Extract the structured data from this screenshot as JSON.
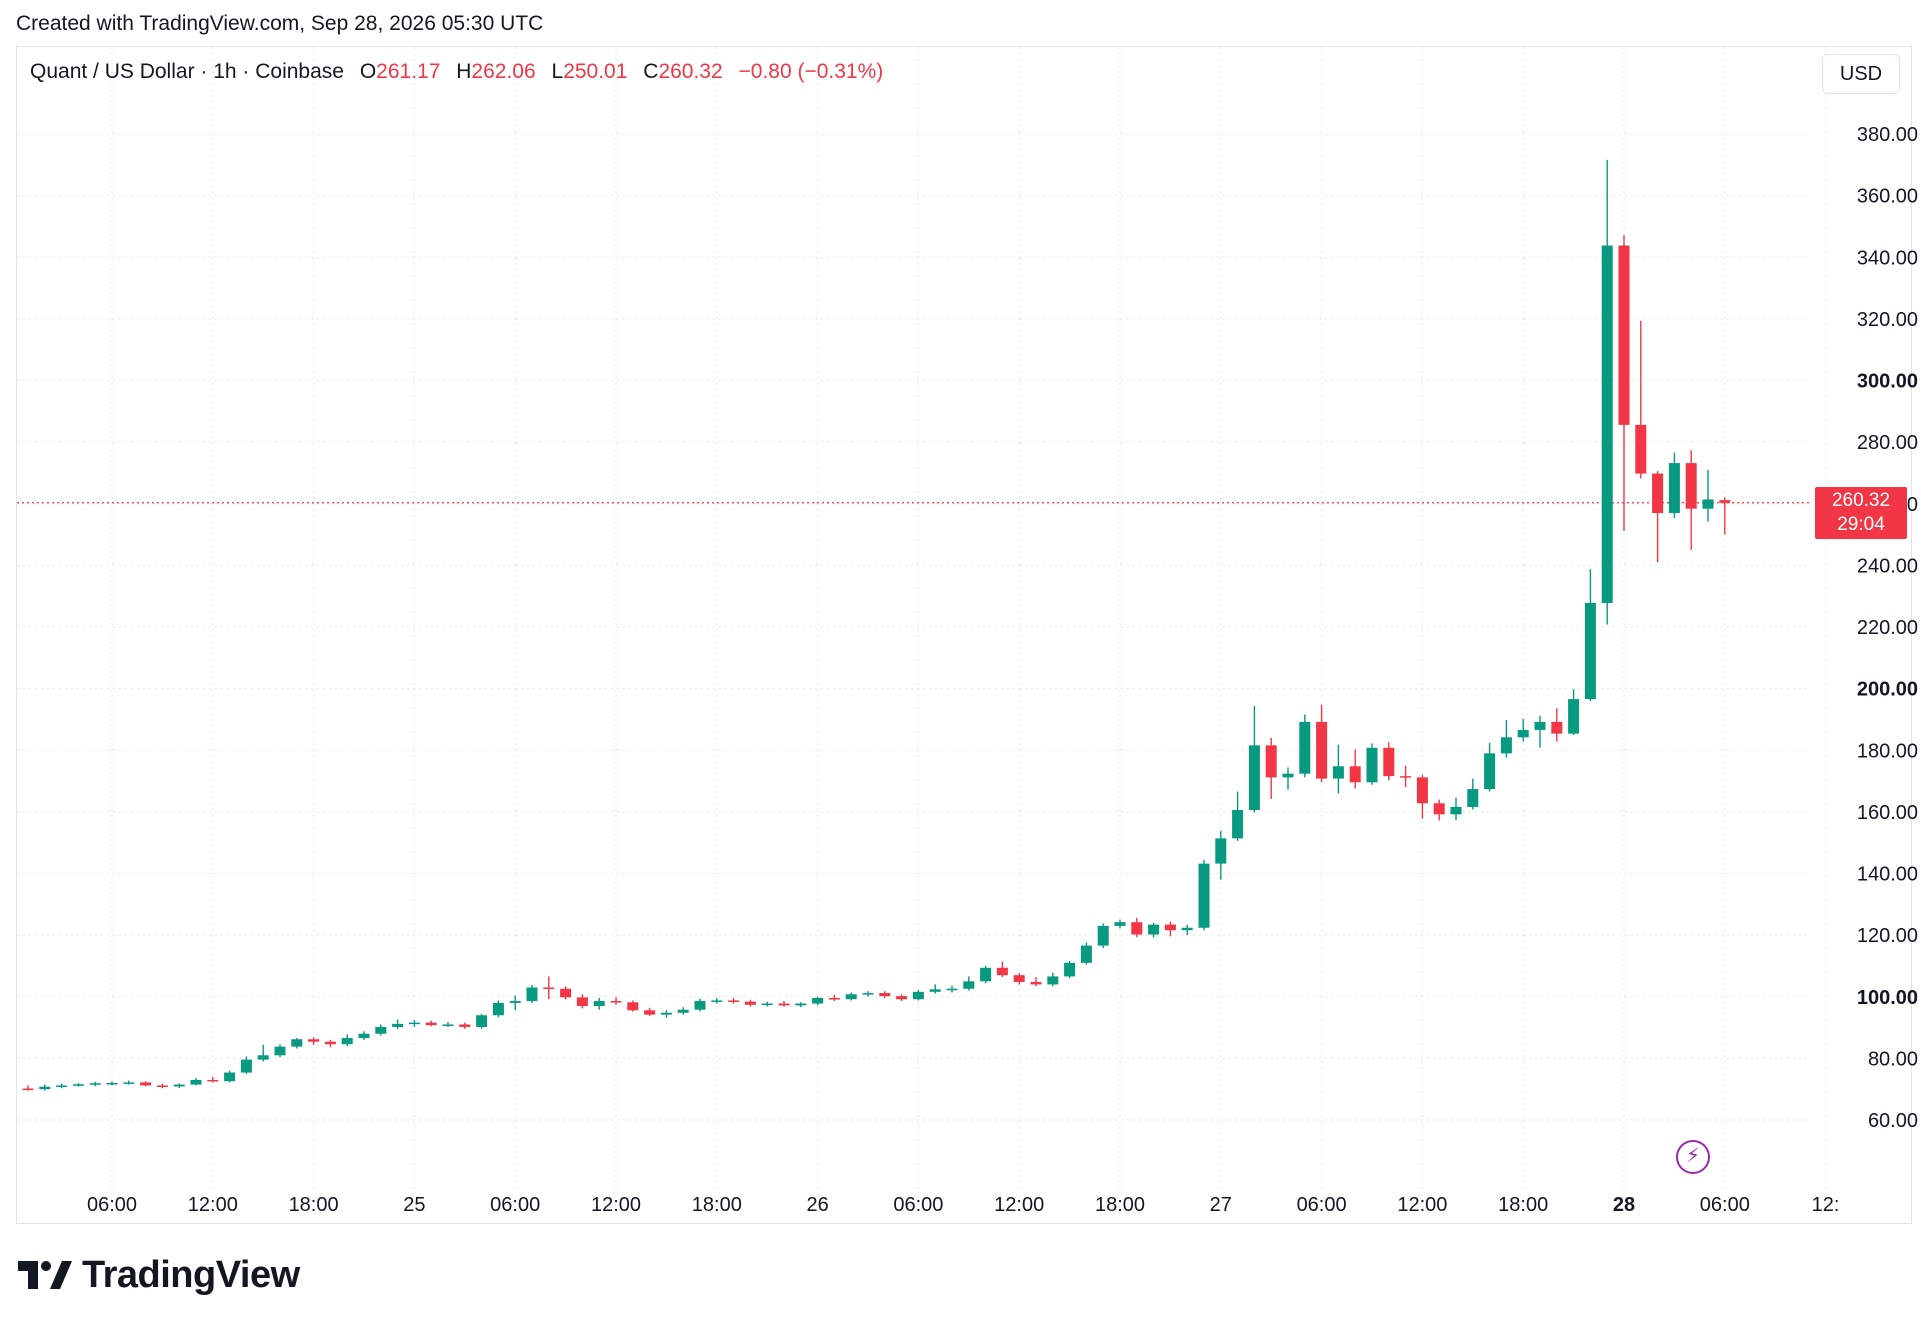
{
  "header": {
    "caption": "Created with TradingView.com, Sep 28, 2026 05:30 UTC"
  },
  "legend": {
    "symbol": "Quant / US Dollar · 1h · Coinbase",
    "open_label": "O",
    "open": "261.17",
    "high_label": "H",
    "high": "262.06",
    "low_label": "L",
    "low": "250.01",
    "close_label": "C",
    "close": "260.32",
    "change": "−0.80 (−0.31%)"
  },
  "currency_button": "USD",
  "price_tag": {
    "price": "260.32",
    "countdown": "29:04"
  },
  "footer": {
    "brand": "TradingView"
  },
  "colors": {
    "up": "#089981",
    "down": "#f23645",
    "grid": "#e0e3eb",
    "text": "#131722"
  },
  "icons": {
    "replay": "lightning-icon",
    "logo": "tradingview-logo-icon"
  },
  "chart_data": {
    "type": "candlestick",
    "interval": "1h",
    "yaxis": {
      "range": [
        40,
        390
      ],
      "ticks": [
        "60.00",
        "80.00",
        "100.00",
        "120.00",
        "140.00",
        "160.00",
        "180.00",
        "200.00",
        "220.00",
        "240.00",
        "260.00",
        "280.00",
        "300.00",
        "320.00",
        "340.00",
        "360.00",
        "380.00"
      ],
      "bold_ticks": [
        "100.00",
        "200.00",
        "300.00"
      ]
    },
    "xaxis": {
      "ticks": [
        "06:00",
        "12:00",
        "18:00",
        "25",
        "06:00",
        "12:00",
        "18:00",
        "26",
        "06:00",
        "12:00",
        "18:00",
        "27",
        "06:00",
        "12:00",
        "18:00",
        "28",
        "06:00",
        "12:"
      ],
      "bold_ticks": [
        "28"
      ]
    },
    "last_price": 260.32,
    "candles": [
      {
        "o": 70.2,
        "h": 71.2,
        "l": 69.5,
        "c": 70.0
      },
      {
        "o": 70.0,
        "h": 71.5,
        "l": 69.6,
        "c": 70.8
      },
      {
        "o": 70.8,
        "h": 71.8,
        "l": 70.3,
        "c": 71.2
      },
      {
        "o": 71.2,
        "h": 72.0,
        "l": 70.8,
        "c": 71.6
      },
      {
        "o": 71.6,
        "h": 72.4,
        "l": 71.0,
        "c": 71.9
      },
      {
        "o": 71.9,
        "h": 72.5,
        "l": 71.3,
        "c": 72.0
      },
      {
        "o": 72.0,
        "h": 72.8,
        "l": 71.5,
        "c": 72.2
      },
      {
        "o": 72.2,
        "h": 72.6,
        "l": 71.0,
        "c": 71.2
      },
      {
        "o": 71.2,
        "h": 71.8,
        "l": 70.3,
        "c": 70.9
      },
      {
        "o": 70.9,
        "h": 71.9,
        "l": 70.4,
        "c": 71.5
      },
      {
        "o": 71.5,
        "h": 73.6,
        "l": 71.2,
        "c": 73.0
      },
      {
        "o": 73.0,
        "h": 74.0,
        "l": 72.2,
        "c": 72.6
      },
      {
        "o": 72.6,
        "h": 76.0,
        "l": 72.2,
        "c": 75.4
      },
      {
        "o": 75.4,
        "h": 80.6,
        "l": 75.0,
        "c": 79.6
      },
      {
        "o": 79.6,
        "h": 84.4,
        "l": 79.0,
        "c": 81.0
      },
      {
        "o": 81.0,
        "h": 84.6,
        "l": 80.4,
        "c": 83.8
      },
      {
        "o": 83.8,
        "h": 86.6,
        "l": 83.2,
        "c": 86.2
      },
      {
        "o": 86.2,
        "h": 86.8,
        "l": 84.4,
        "c": 85.4
      },
      {
        "o": 85.4,
        "h": 86.0,
        "l": 83.6,
        "c": 84.6
      },
      {
        "o": 84.6,
        "h": 87.8,
        "l": 84.0,
        "c": 86.6
      },
      {
        "o": 86.6,
        "h": 88.8,
        "l": 86.0,
        "c": 88.0
      },
      {
        "o": 88.0,
        "h": 91.0,
        "l": 87.4,
        "c": 90.2
      },
      {
        "o": 90.2,
        "h": 92.6,
        "l": 89.6,
        "c": 91.2
      },
      {
        "o": 91.2,
        "h": 92.4,
        "l": 90.2,
        "c": 91.6
      },
      {
        "o": 91.6,
        "h": 92.2,
        "l": 90.4,
        "c": 90.8
      },
      {
        "o": 90.8,
        "h": 91.8,
        "l": 90.2,
        "c": 91.0
      },
      {
        "o": 91.0,
        "h": 91.6,
        "l": 89.6,
        "c": 90.2
      },
      {
        "o": 90.2,
        "h": 94.4,
        "l": 89.6,
        "c": 94.0
      },
      {
        "o": 94.0,
        "h": 98.8,
        "l": 93.4,
        "c": 98.0
      },
      {
        "o": 98.0,
        "h": 100.4,
        "l": 95.6,
        "c": 98.6
      },
      {
        "o": 98.6,
        "h": 103.8,
        "l": 98.0,
        "c": 103.0
      },
      {
        "o": 103.0,
        "h": 106.6,
        "l": 99.2,
        "c": 102.6
      },
      {
        "o": 102.6,
        "h": 103.4,
        "l": 99.2,
        "c": 99.8
      },
      {
        "o": 99.8,
        "h": 100.8,
        "l": 96.2,
        "c": 97.0
      },
      {
        "o": 97.0,
        "h": 99.6,
        "l": 95.8,
        "c": 98.6
      },
      {
        "o": 98.6,
        "h": 99.8,
        "l": 97.4,
        "c": 98.2
      },
      {
        "o": 98.2,
        "h": 98.8,
        "l": 95.2,
        "c": 95.6
      },
      {
        "o": 95.6,
        "h": 96.4,
        "l": 93.8,
        "c": 94.2
      },
      {
        "o": 94.2,
        "h": 95.6,
        "l": 93.2,
        "c": 94.8
      },
      {
        "o": 94.8,
        "h": 96.6,
        "l": 94.2,
        "c": 95.8
      },
      {
        "o": 95.8,
        "h": 99.4,
        "l": 95.2,
        "c": 98.6
      },
      {
        "o": 98.6,
        "h": 99.6,
        "l": 97.8,
        "c": 98.8
      },
      {
        "o": 98.8,
        "h": 99.6,
        "l": 97.8,
        "c": 98.4
      },
      {
        "o": 98.4,
        "h": 99.0,
        "l": 96.8,
        "c": 97.4
      },
      {
        "o": 97.4,
        "h": 98.4,
        "l": 96.8,
        "c": 97.8
      },
      {
        "o": 97.8,
        "h": 98.6,
        "l": 96.8,
        "c": 97.2
      },
      {
        "o": 97.2,
        "h": 98.2,
        "l": 96.6,
        "c": 97.8
      },
      {
        "o": 97.8,
        "h": 100.0,
        "l": 97.2,
        "c": 99.6
      },
      {
        "o": 99.6,
        "h": 100.6,
        "l": 98.6,
        "c": 99.2
      },
      {
        "o": 99.2,
        "h": 101.4,
        "l": 98.8,
        "c": 100.8
      },
      {
        "o": 100.8,
        "h": 101.8,
        "l": 100.0,
        "c": 101.2
      },
      {
        "o": 101.2,
        "h": 101.8,
        "l": 99.6,
        "c": 100.2
      },
      {
        "o": 100.2,
        "h": 100.8,
        "l": 98.6,
        "c": 99.2
      },
      {
        "o": 99.2,
        "h": 102.2,
        "l": 98.8,
        "c": 101.6
      },
      {
        "o": 101.6,
        "h": 104.0,
        "l": 101.0,
        "c": 102.4
      },
      {
        "o": 102.4,
        "h": 103.6,
        "l": 101.4,
        "c": 102.6
      },
      {
        "o": 102.6,
        "h": 106.6,
        "l": 102.0,
        "c": 105.0
      },
      {
        "o": 105.0,
        "h": 110.0,
        "l": 104.4,
        "c": 109.4
      },
      {
        "o": 109.4,
        "h": 111.4,
        "l": 106.4,
        "c": 107.0
      },
      {
        "o": 107.0,
        "h": 107.6,
        "l": 104.0,
        "c": 104.8
      },
      {
        "o": 104.8,
        "h": 106.4,
        "l": 103.4,
        "c": 104.0
      },
      {
        "o": 104.0,
        "h": 107.8,
        "l": 103.4,
        "c": 106.6
      },
      {
        "o": 106.6,
        "h": 111.6,
        "l": 106.0,
        "c": 111.0
      },
      {
        "o": 111.0,
        "h": 117.6,
        "l": 110.4,
        "c": 116.6
      },
      {
        "o": 116.6,
        "h": 123.8,
        "l": 115.8,
        "c": 123.0
      },
      {
        "o": 123.0,
        "h": 125.0,
        "l": 122.2,
        "c": 124.2
      },
      {
        "o": 124.2,
        "h": 125.6,
        "l": 119.4,
        "c": 120.2
      },
      {
        "o": 120.2,
        "h": 124.0,
        "l": 119.2,
        "c": 123.4
      },
      {
        "o": 123.4,
        "h": 124.4,
        "l": 119.6,
        "c": 121.6
      },
      {
        "o": 121.6,
        "h": 123.4,
        "l": 120.0,
        "c": 122.4
      },
      {
        "o": 122.4,
        "h": 144.4,
        "l": 121.6,
        "c": 143.2
      },
      {
        "o": 143.2,
        "h": 153.8,
        "l": 138.0,
        "c": 151.4
      },
      {
        "o": 151.4,
        "h": 166.6,
        "l": 150.6,
        "c": 160.6
      },
      {
        "o": 160.6,
        "h": 194.4,
        "l": 159.8,
        "c": 181.6
      },
      {
        "o": 181.6,
        "h": 184.0,
        "l": 164.2,
        "c": 171.2
      },
      {
        "o": 171.2,
        "h": 174.4,
        "l": 167.2,
        "c": 172.4
      },
      {
        "o": 172.4,
        "h": 191.6,
        "l": 171.2,
        "c": 189.2
      },
      {
        "o": 189.2,
        "h": 194.8,
        "l": 169.6,
        "c": 170.8
      },
      {
        "o": 170.8,
        "h": 181.8,
        "l": 166.0,
        "c": 174.8
      },
      {
        "o": 174.8,
        "h": 180.2,
        "l": 167.6,
        "c": 169.6
      },
      {
        "o": 169.6,
        "h": 182.2,
        "l": 168.8,
        "c": 180.8
      },
      {
        "o": 180.8,
        "h": 182.6,
        "l": 170.2,
        "c": 171.6
      },
      {
        "o": 171.6,
        "h": 175.0,
        "l": 168.0,
        "c": 171.2
      },
      {
        "o": 171.2,
        "h": 172.0,
        "l": 157.8,
        "c": 162.8
      },
      {
        "o": 162.8,
        "h": 164.0,
        "l": 157.2,
        "c": 159.2
      },
      {
        "o": 159.2,
        "h": 164.6,
        "l": 157.4,
        "c": 161.6
      },
      {
        "o": 161.6,
        "h": 170.8,
        "l": 160.8,
        "c": 167.4
      },
      {
        "o": 167.4,
        "h": 182.4,
        "l": 166.6,
        "c": 179.0
      },
      {
        "o": 179.0,
        "h": 189.8,
        "l": 177.6,
        "c": 184.2
      },
      {
        "o": 184.2,
        "h": 190.2,
        "l": 182.8,
        "c": 186.6
      },
      {
        "o": 186.6,
        "h": 191.2,
        "l": 180.8,
        "c": 189.2
      },
      {
        "o": 189.2,
        "h": 193.6,
        "l": 182.8,
        "c": 185.4
      },
      {
        "o": 185.4,
        "h": 199.8,
        "l": 185.0,
        "c": 196.6
      },
      {
        "o": 196.6,
        "h": 238.8,
        "l": 196.0,
        "c": 227.8
      },
      {
        "o": 227.8,
        "h": 371.6,
        "l": 220.8,
        "c": 343.8
      },
      {
        "o": 343.8,
        "h": 347.2,
        "l": 251.2,
        "c": 285.6
      },
      {
        "o": 285.6,
        "h": 319.4,
        "l": 268.2,
        "c": 269.8
      },
      {
        "o": 269.8,
        "h": 270.6,
        "l": 241.0,
        "c": 257.0
      },
      {
        "o": 257.0,
        "h": 276.6,
        "l": 255.4,
        "c": 273.2
      },
      {
        "o": 273.2,
        "h": 277.4,
        "l": 245.0,
        "c": 258.4
      },
      {
        "o": 258.4,
        "h": 271.0,
        "l": 254.2,
        "c": 261.4
      },
      {
        "o": 261.17,
        "h": 262.06,
        "l": 250.01,
        "c": 260.32
      }
    ]
  }
}
